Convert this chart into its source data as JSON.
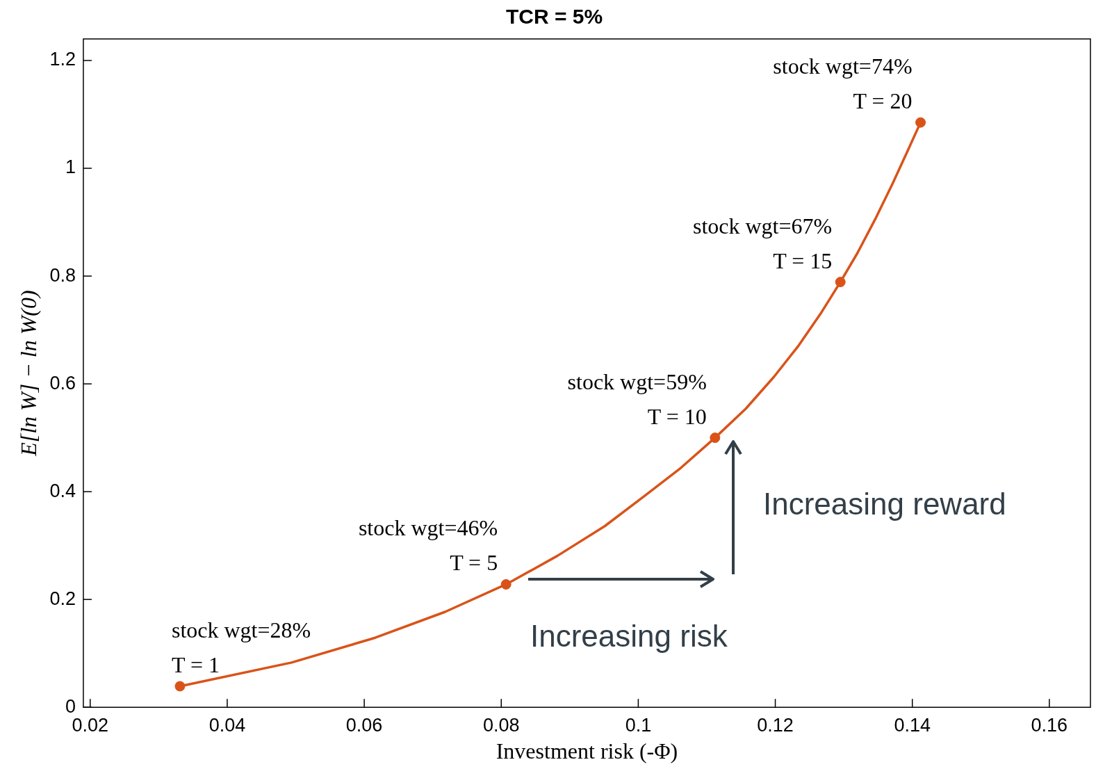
{
  "chart_data": {
    "type": "line",
    "title": "TCR = 5%",
    "xlabel": "Investment risk (-Φ)",
    "ylabel": "E[ln W] − ln W(0)",
    "xlim": [
      0.019,
      0.166
    ],
    "ylim": [
      0,
      1.24
    ],
    "xticks": [
      0.02,
      0.04,
      0.06,
      0.08,
      0.1,
      0.12,
      0.14,
      0.16
    ],
    "yticks": [
      0,
      0.2,
      0.4,
      0.6,
      0.8,
      1,
      1.2
    ],
    "grid": false,
    "legend": false,
    "series": [
      {
        "type": "line",
        "color": "#d95319",
        "marker": "none",
        "x": [
          0.0331,
          0.0494,
          0.0616,
          0.0718,
          0.0807,
          0.0882,
          0.0951,
          0.1009,
          0.1062,
          0.1112,
          0.1157,
          0.1198,
          0.1234,
          0.1266,
          0.1295,
          0.132,
          0.1346,
          0.1371,
          0.1392,
          0.1412
        ],
        "values": [
          0.039,
          0.083,
          0.129,
          0.177,
          0.228,
          0.281,
          0.336,
          0.392,
          0.444,
          0.5,
          0.554,
          0.613,
          0.671,
          0.73,
          0.789,
          0.843,
          0.906,
          0.971,
          1.029,
          1.085
        ]
      },
      {
        "type": "scatter",
        "color": "#d95319",
        "marker": "circle",
        "x": [
          0.0331,
          0.0807,
          0.1112,
          0.1295,
          0.1412
        ],
        "values": [
          0.039,
          0.228,
          0.5,
          0.789,
          1.085
        ]
      }
    ],
    "annotations": [
      {
        "text": "stock wgt=28%\nT = 1",
        "x": 0.0331,
        "y": 0.039
      },
      {
        "text": "stock wgt=46%\nT = 5",
        "x": 0.0807,
        "y": 0.228
      },
      {
        "text": "stock wgt=59%\nT = 10",
        "x": 0.1112,
        "y": 0.5
      },
      {
        "text": "stock wgt=67%\nT = 15",
        "x": 0.1295,
        "y": 0.789
      },
      {
        "text": "stock wgt=74%\nT = 20",
        "x": 0.1412,
        "y": 1.085
      },
      "Increasing risk",
      "Increasing reward"
    ]
  }
}
